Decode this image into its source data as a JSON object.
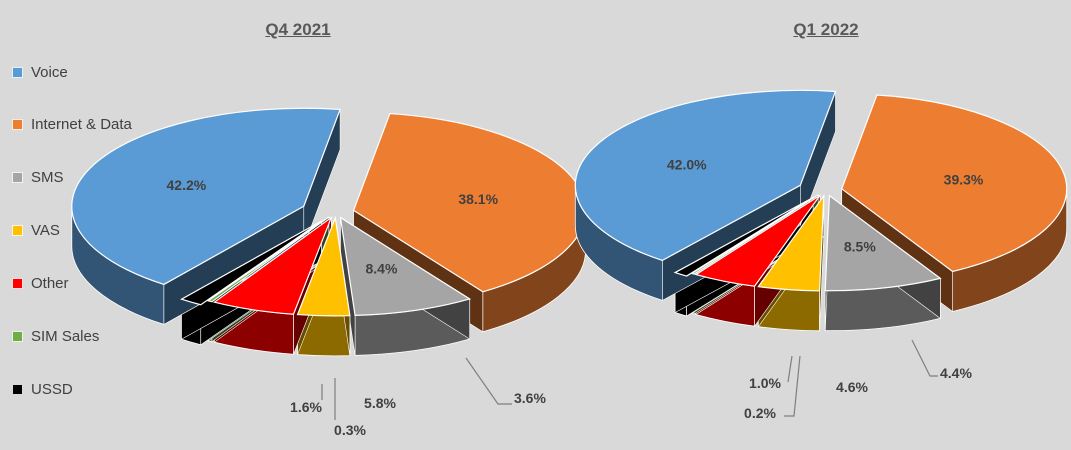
{
  "legend": [
    {
      "label": "Voice",
      "color": "#5b9bd5"
    },
    {
      "label": "Internet & Data",
      "color": "#ed7d31"
    },
    {
      "label": "SMS",
      "color": "#a5a5a5"
    },
    {
      "label": "VAS",
      "color": "#ffc000"
    },
    {
      "label": "Other",
      "color": "#ff0000"
    },
    {
      "label": "SIM Sales",
      "color": "#70ad47"
    },
    {
      "label": "USSD",
      "color": "#000000"
    }
  ],
  "chart_data": [
    {
      "type": "pie",
      "title": "Q4 2021",
      "categories": [
        "Voice",
        "Internet & Data",
        "SMS",
        "VAS",
        "Other",
        "SIM Sales",
        "USSD"
      ],
      "values": [
        42.2,
        38.1,
        8.4,
        3.6,
        5.8,
        0.3,
        1.6
      ],
      "labels": [
        "42.2%",
        "38.1%",
        "8.4%",
        "3.6%",
        "5.8%",
        "0.3%",
        "1.6%"
      ],
      "style": "3d-exploded"
    },
    {
      "type": "pie",
      "title": "Q1 2022",
      "categories": [
        "Voice",
        "Internet & Data",
        "SMS",
        "VAS",
        "Other",
        "SIM Sales",
        "USSD"
      ],
      "values": [
        42.0,
        39.3,
        8.5,
        4.4,
        4.6,
        0.2,
        1.0
      ],
      "labels": [
        "42.0%",
        "39.3%",
        "8.5%",
        "4.4%",
        "4.6%",
        "0.2%",
        "1.0%"
      ],
      "style": "3d-exploded"
    }
  ]
}
